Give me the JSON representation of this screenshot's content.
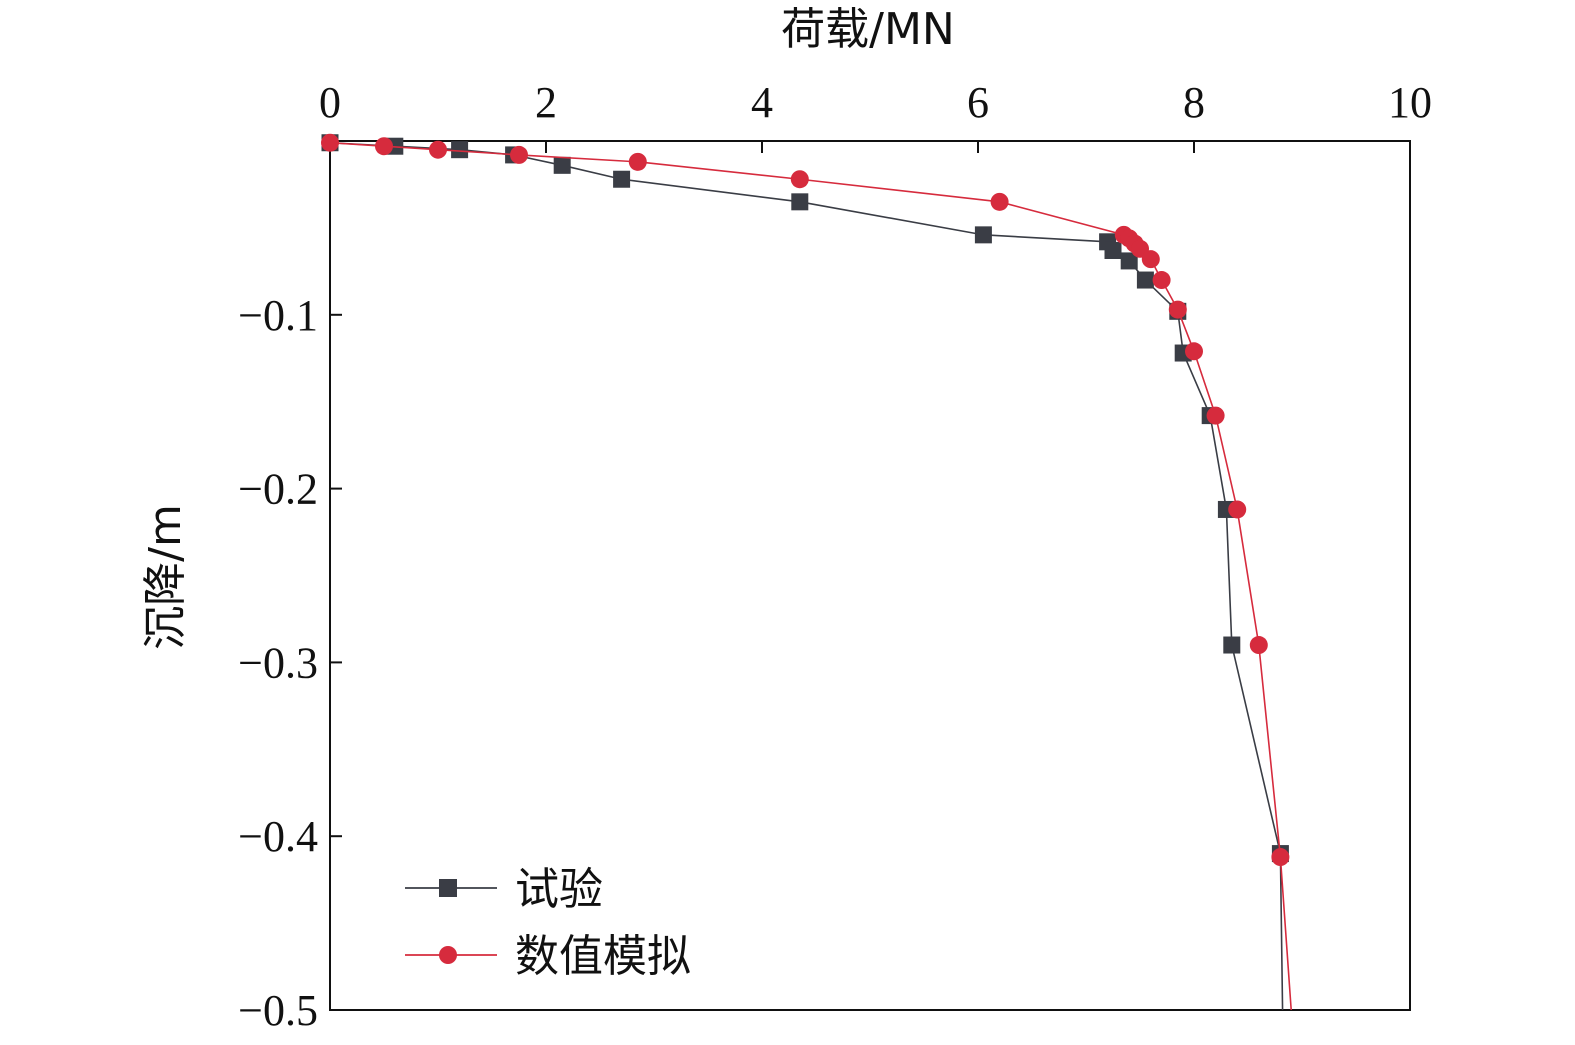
{
  "chart_data": {
    "type": "line",
    "xlabel": "荷载/MN",
    "ylabel": "沉降/m",
    "xlim": [
      0,
      10
    ],
    "ylim": [
      -0.5,
      0
    ],
    "x_ticks": [
      "0",
      "2",
      "4",
      "6",
      "8",
      "10"
    ],
    "y_ticks": [
      "−0.1",
      "−0.2",
      "−0.3",
      "−0.4",
      "−0.5"
    ],
    "x_tick_values": [
      0,
      2,
      4,
      6,
      8,
      10
    ],
    "y_tick_values": [
      -0.1,
      -0.2,
      -0.3,
      -0.4,
      -0.5
    ],
    "x_axis_position": "top",
    "grid": false,
    "legend_position": "bottom-left",
    "series": [
      {
        "name": "试验",
        "color": "#3a3d45",
        "marker": "square",
        "points": [
          [
            0.0,
            -0.001
          ],
          [
            0.6,
            -0.003
          ],
          [
            1.2,
            -0.005
          ],
          [
            1.7,
            -0.008
          ],
          [
            2.15,
            -0.014
          ],
          [
            2.7,
            -0.022
          ],
          [
            4.35,
            -0.035
          ],
          [
            6.05,
            -0.054
          ],
          [
            7.2,
            -0.058
          ],
          [
            7.25,
            -0.063
          ],
          [
            7.4,
            -0.069
          ],
          [
            7.55,
            -0.08
          ],
          [
            7.85,
            -0.098
          ],
          [
            7.9,
            -0.122
          ],
          [
            8.15,
            -0.158
          ],
          [
            8.3,
            -0.212
          ],
          [
            8.35,
            -0.29
          ],
          [
            8.8,
            -0.41
          ],
          [
            8.82,
            -0.5
          ]
        ]
      },
      {
        "name": "数值模拟",
        "color": "#d62b3d",
        "marker": "circle",
        "points": [
          [
            0.0,
            -0.001
          ],
          [
            0.5,
            -0.003
          ],
          [
            1.0,
            -0.005
          ],
          [
            1.75,
            -0.008
          ],
          [
            2.85,
            -0.012
          ],
          [
            4.35,
            -0.022
          ],
          [
            6.2,
            -0.035
          ],
          [
            7.35,
            -0.054
          ],
          [
            7.4,
            -0.056
          ],
          [
            7.45,
            -0.059
          ],
          [
            7.5,
            -0.062
          ],
          [
            7.6,
            -0.068
          ],
          [
            7.7,
            -0.08
          ],
          [
            7.85,
            -0.097
          ],
          [
            8.0,
            -0.121
          ],
          [
            8.2,
            -0.158
          ],
          [
            8.4,
            -0.212
          ],
          [
            8.6,
            -0.29
          ],
          [
            8.8,
            -0.412
          ],
          [
            8.9,
            -0.5
          ]
        ]
      }
    ]
  }
}
